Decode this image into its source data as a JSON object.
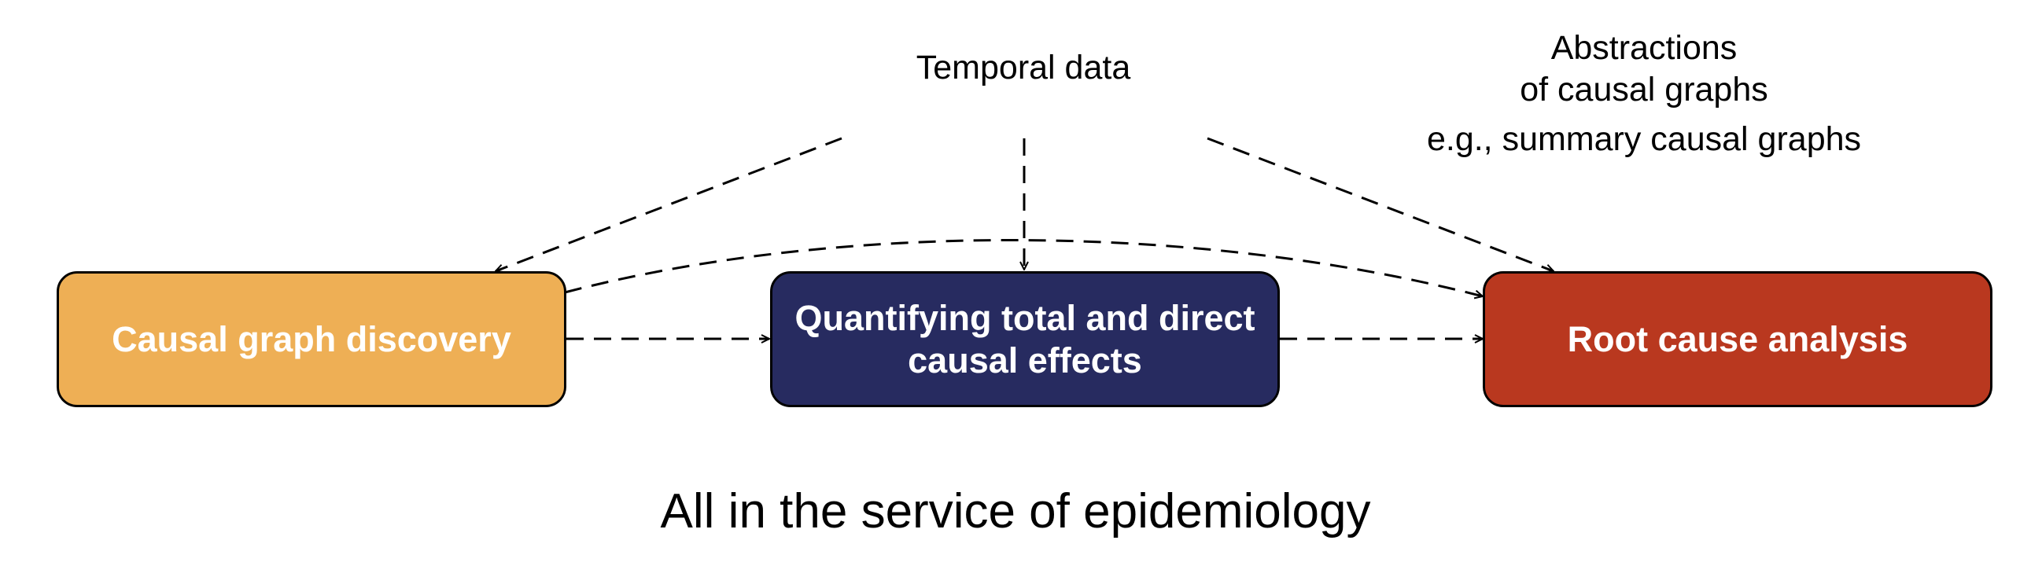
{
  "sources": {
    "temporal_data": "Temporal data",
    "abstractions_line1": "Abstractions",
    "abstractions_line2": "of causal graphs",
    "abstractions_example": "e.g., summary causal graphs"
  },
  "boxes": {
    "discovery": {
      "label": "Causal graph discovery",
      "color": "#EEAF55"
    },
    "effects": {
      "line1": "Quantifying total and direct",
      "line2": "causal effects",
      "color": "#272B60"
    },
    "rca": {
      "label": "Root cause analysis",
      "color": "#B9381F"
    }
  },
  "footer": "All in the service of epidemiology"
}
